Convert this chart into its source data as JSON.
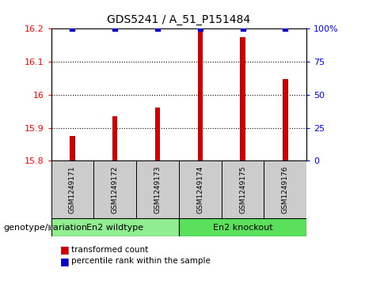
{
  "title": "GDS5241 / A_51_P151484",
  "samples": [
    "GSM1249171",
    "GSM1249172",
    "GSM1249173",
    "GSM1249174",
    "GSM1249175",
    "GSM1249176"
  ],
  "red_values": [
    15.876,
    15.935,
    15.962,
    16.197,
    16.175,
    16.047
  ],
  "blue_values": [
    100,
    100,
    100,
    100,
    100,
    100
  ],
  "ylim_left": [
    15.8,
    16.2
  ],
  "ylim_right": [
    0,
    100
  ],
  "yticks_left": [
    15.8,
    15.9,
    16.0,
    16.1,
    16.2
  ],
  "yticks_right": [
    0,
    25,
    50,
    75,
    100
  ],
  "ytick_labels_left": [
    "15.8",
    "15.9",
    "16",
    "16.1",
    "16.2"
  ],
  "ytick_labels_right": [
    "0",
    "25",
    "50",
    "75",
    "100%"
  ],
  "group1_label": "En2 wildtype",
  "group2_label": "En2 knockout",
  "group_label_text": "genotype/variation",
  "group1_color": "#90EE90",
  "group2_color": "#5AE05A",
  "legend_item1_color": "#CC0000",
  "legend_item1_label": "transformed count",
  "legend_item2_color": "#0000CC",
  "legend_item2_label": "percentile rank within the sample",
  "bar_color": "#CC0000",
  "dot_color": "#0000CC",
  "bar_width": 0.12,
  "sample_box_color": "#CCCCCC",
  "plot_bg": "#FFFFFF",
  "dotted_grid_ticks": [
    15.9,
    16.0,
    16.1
  ]
}
